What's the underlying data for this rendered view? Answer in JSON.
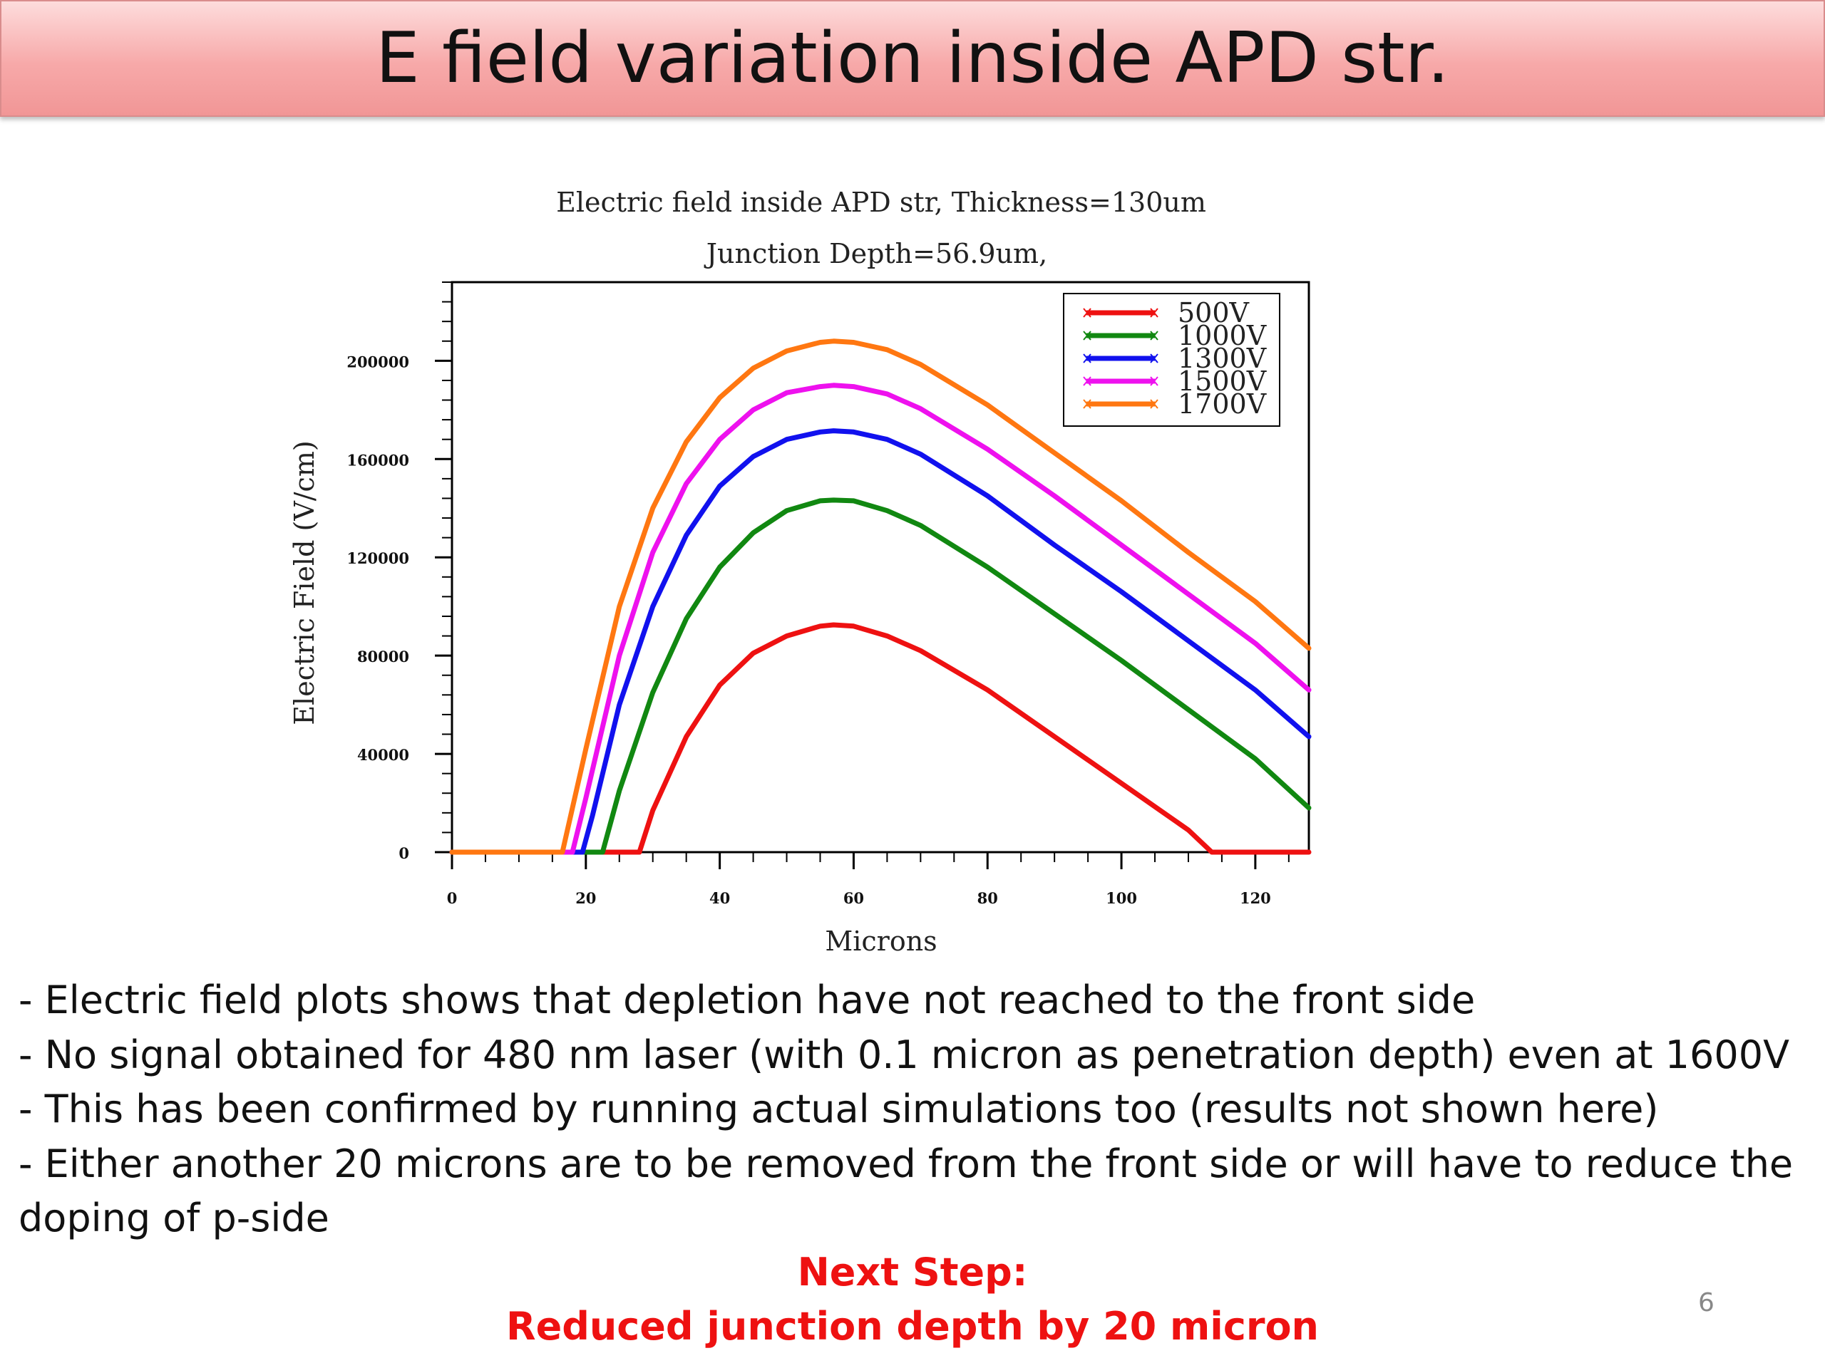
{
  "slide": {
    "title": "E field variation inside APD str.",
    "bullets": [
      "- Electric field plots shows that depletion have not reached to the front side",
      "- No signal obtained for 480 nm laser (with 0.1 micron as penetration depth) even at 1600V",
      "- This has been confirmed by running actual simulations too (results not shown here)",
      "- Either another 20 microns are to be removed from the front side or will have to reduce the doping of p-side"
    ],
    "next_step": {
      "heading": "Next Step:",
      "text": "Reduced junction depth by 20 micron"
    },
    "page_number": "6"
  },
  "chart_data": {
    "type": "line",
    "title": "Electric field inside APD str, Thickness=130um",
    "subtitle": "Junction Depth=56.9um,",
    "xlabel": "Microns",
    "ylabel": "Electric Field (V/cm)",
    "xlim": [
      0,
      128
    ],
    "ylim": [
      0,
      232000
    ],
    "x_ticks": [
      0,
      20,
      40,
      60,
      80,
      100,
      120
    ],
    "y_ticks": [
      0,
      40000,
      80000,
      120000,
      160000,
      200000
    ],
    "x_tick_labels": [
      "0",
      "20",
      "40",
      "60",
      "80",
      "100",
      "120"
    ],
    "y_tick_labels": [
      "0",
      "40000",
      "80000",
      "120000",
      "160000",
      "200000"
    ],
    "legend_position": "top-right",
    "grid": false,
    "series": [
      {
        "name": "500V",
        "color": "#ee1111",
        "x": [
          0,
          28,
          30,
          35,
          40,
          45,
          50,
          55,
          57,
          60,
          65,
          70,
          80,
          90,
          100,
          110,
          113.5,
          128
        ],
        "y": [
          0,
          0,
          17000,
          47000,
          68000,
          81000,
          88000,
          92000,
          92500,
          92000,
          88000,
          82000,
          66000,
          47000,
          28000,
          9000,
          0,
          0
        ]
      },
      {
        "name": "1000V",
        "color": "#118811",
        "x": [
          0,
          22.5,
          25,
          30,
          35,
          40,
          45,
          50,
          55,
          57,
          60,
          65,
          70,
          80,
          90,
          100,
          110,
          120,
          128
        ],
        "y": [
          0,
          0,
          25000,
          65000,
          95000,
          116000,
          130000,
          139000,
          143000,
          143300,
          143000,
          139000,
          133000,
          116000,
          97000,
          78000,
          58000,
          38000,
          18000
        ]
      },
      {
        "name": "1300V",
        "color": "#1111ee",
        "x": [
          0,
          19.5,
          21,
          25,
          30,
          35,
          40,
          45,
          50,
          55,
          57,
          60,
          65,
          70,
          80,
          90,
          100,
          110,
          120,
          128
        ],
        "y": [
          0,
          0,
          15000,
          60000,
          100000,
          129000,
          149000,
          161000,
          168000,
          171000,
          171500,
          171000,
          168000,
          162000,
          145000,
          125000,
          106000,
          86000,
          66000,
          47000
        ]
      },
      {
        "name": "1500V",
        "color": "#ee11ee",
        "x": [
          0,
          18,
          20,
          25,
          30,
          35,
          40,
          45,
          50,
          55,
          57,
          60,
          65,
          70,
          80,
          90,
          100,
          110,
          120,
          128
        ],
        "y": [
          0,
          0,
          22000,
          80000,
          122000,
          150000,
          168000,
          180000,
          187000,
          189500,
          190000,
          189500,
          186500,
          180500,
          164000,
          145000,
          125000,
          105000,
          85000,
          66000
        ]
      },
      {
        "name": "1700V",
        "color": "#ff7711",
        "x": [
          0,
          16.5,
          18,
          20,
          25,
          30,
          35,
          40,
          45,
          50,
          55,
          57,
          60,
          65,
          70,
          80,
          90,
          100,
          110,
          120,
          128
        ],
        "y": [
          0,
          0,
          18000,
          42000,
          100000,
          140000,
          167000,
          185000,
          197000,
          204000,
          207500,
          208000,
          207500,
          204500,
          198500,
          182000,
          162500,
          143000,
          122000,
          102000,
          83000
        ]
      }
    ]
  }
}
